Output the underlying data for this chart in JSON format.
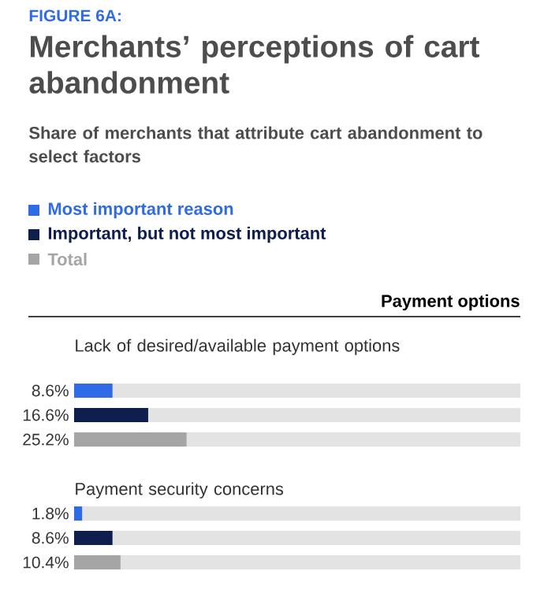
{
  "chart_data": {
    "type": "bar",
    "orientation": "horizontal",
    "title": "Merchants’ perceptions of cart abandonment",
    "subtitle": "Share of merchants that attribute cart abandonment to select factors",
    "annotations": [
      "FIGURE 6A:",
      "Payment options"
    ],
    "categories": [
      "Lack of desired/available payment options",
      "Payment security concerns"
    ],
    "xlim": [
      0,
      100
    ],
    "legend": "top left",
    "series": [
      {
        "name": "Most important reason",
        "color": "#2f6be6",
        "values": [
          8.6,
          1.8
        ],
        "value_labels": [
          "8.6%",
          "1.8%"
        ]
      },
      {
        "name": "Important, but not most important",
        "color": "#0f1f4d",
        "values": [
          16.6,
          8.6
        ],
        "value_labels": [
          "16.6%",
          "8.6%"
        ]
      },
      {
        "name": "Total",
        "color": "#a5a5a5",
        "values": [
          25.2,
          10.4
        ],
        "value_labels": [
          "25.2%",
          "10.4%"
        ]
      }
    ]
  }
}
